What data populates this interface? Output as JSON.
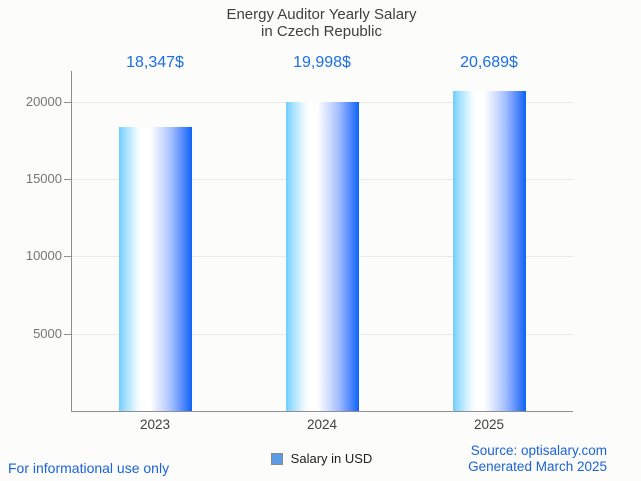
{
  "title": {
    "line1": "Energy Auditor Yearly Salary",
    "line2": "in Czech Republic"
  },
  "chart_data": {
    "type": "bar",
    "title": "Energy Auditor Yearly Salary in Czech Republic",
    "categories": [
      "2023",
      "2024",
      "2025"
    ],
    "values": [
      18347,
      19998,
      20689
    ],
    "value_labels": [
      "18,347$",
      "19,998$",
      "20,689$"
    ],
    "series_name": "Salary in USD",
    "xlabel": "",
    "ylabel": "",
    "ylim": [
      0,
      22000
    ],
    "yticks": [
      5000,
      10000,
      15000,
      20000
    ],
    "grid": true,
    "legend_position": "bottom"
  },
  "legend": {
    "label": "Salary in USD"
  },
  "footer": {
    "left": "For informational use only",
    "source": "Source: optisalary.com",
    "generated": "Generated March 2025"
  },
  "colors": {
    "background": "#fcfcfa",
    "title_text": "#3f3f3f",
    "data_label_blue": "#1a6fe8",
    "footer_blue": "#1b63d8",
    "axis_line": "#8f8f8f",
    "gridline": "#e9e9e9",
    "ytick_text": "#757575",
    "xtick_text": "#424242",
    "legend_text": "#1f1f1f",
    "legend_swatch": "#5b9ce4",
    "bar_gradient": [
      [
        "0%",
        "#70ceff"
      ],
      [
        "10%",
        "#a8e2ff"
      ],
      [
        "25%",
        "#eefaff"
      ],
      [
        "32%",
        "#ffffff"
      ],
      [
        "43%",
        "#ffffff"
      ],
      [
        "57%",
        "#d5e1ff"
      ],
      [
        "72%",
        "#a3bfff"
      ],
      [
        "86%",
        "#5c8ffd"
      ],
      [
        "100%",
        "#0d64f7"
      ]
    ]
  }
}
